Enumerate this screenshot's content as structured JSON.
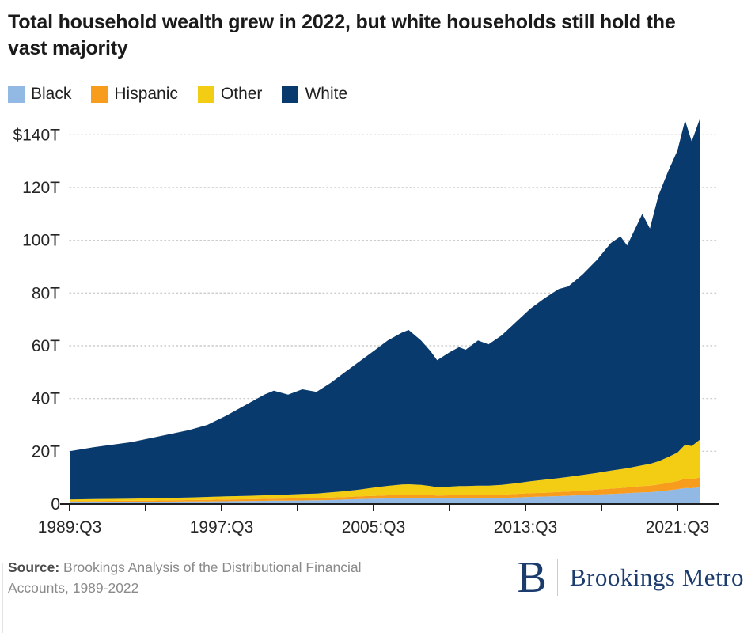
{
  "page": {
    "title": "Total household wealth grew in 2022, but white households still hold the vast majority"
  },
  "legend": {
    "items": [
      {
        "label": "Black",
        "color": "#92b9e4"
      },
      {
        "label": "Hispanic",
        "color": "#f89c1d"
      },
      {
        "label": "Other",
        "color": "#f2cd13"
      },
      {
        "label": "White",
        "color": "#093a6d"
      }
    ]
  },
  "chart_data": {
    "type": "area",
    "stacked": true,
    "title": "Total household wealth grew in 2022, but white households still hold the vast majority",
    "unit": "trillions of US dollars",
    "ylabel": "",
    "xlabel": "",
    "grid": "horizontal-dotted",
    "legend_position": "top",
    "y_max": 150,
    "y_ticks": [
      {
        "value": 0,
        "label": "0"
      },
      {
        "value": 20,
        "label": "20T"
      },
      {
        "value": 40,
        "label": "40T"
      },
      {
        "value": 60,
        "label": "60T"
      },
      {
        "value": 80,
        "label": "80T"
      },
      {
        "value": 100,
        "label": "100T"
      },
      {
        "value": 120,
        "label": "120T"
      },
      {
        "value": 140,
        "label": "$140T"
      }
    ],
    "x_ticks": [
      {
        "year": 1989.75,
        "label": "1989:Q3"
      },
      {
        "year": 1993.75,
        "label": ""
      },
      {
        "year": 1997.75,
        "label": "1997:Q3"
      },
      {
        "year": 2001.75,
        "label": ""
      },
      {
        "year": 2005.75,
        "label": "2005:Q3"
      },
      {
        "year": 2009.75,
        "label": ""
      },
      {
        "year": 2013.75,
        "label": "2013:Q3"
      },
      {
        "year": 2017.75,
        "label": ""
      },
      {
        "year": 2021.75,
        "label": "2021:Q3"
      }
    ],
    "x": [
      1989.75,
      1991,
      1992,
      1993,
      1994,
      1995,
      1996,
      1997,
      1998,
      1999,
      2000,
      2000.5,
      2001.25,
      2002,
      2002.75,
      2003.5,
      2004.25,
      2005,
      2005.75,
      2006.5,
      2007.25,
      2007.6,
      2008.25,
      2008.75,
      2009.1,
      2009.75,
      2010.25,
      2010.6,
      2011.25,
      2011.8,
      2012.5,
      2013.25,
      2014,
      2014.75,
      2015.5,
      2016,
      2016.75,
      2017.5,
      2018.25,
      2018.75,
      2019.1,
      2019.9,
      2020.3,
      2020.75,
      2021.25,
      2021.75,
      2022.15,
      2022.5,
      2022.95
    ],
    "series": [
      {
        "name": "Black",
        "color": "#92b9e4",
        "values": [
          0.7,
          0.75,
          0.8,
          0.8,
          0.85,
          0.9,
          0.95,
          1.0,
          1.05,
          1.1,
          1.2,
          1.25,
          1.3,
          1.35,
          1.4,
          1.5,
          1.7,
          1.9,
          2.0,
          2.1,
          2.2,
          2.25,
          2.3,
          2.2,
          2.1,
          2.15,
          2.2,
          2.2,
          2.25,
          2.25,
          2.3,
          2.5,
          2.7,
          2.85,
          3.0,
          3.15,
          3.35,
          3.6,
          3.85,
          4.0,
          4.1,
          4.4,
          4.5,
          4.8,
          5.2,
          5.6,
          6.1,
          6.0,
          6.4
        ]
      },
      {
        "name": "Hispanic",
        "color": "#f89c1d",
        "values": [
          0.4,
          0.4,
          0.4,
          0.45,
          0.45,
          0.5,
          0.55,
          0.6,
          0.65,
          0.7,
          0.75,
          0.75,
          0.8,
          0.85,
          0.9,
          0.95,
          0.95,
          1.0,
          1.1,
          1.2,
          1.2,
          1.2,
          1.2,
          1.2,
          1.1,
          1.15,
          1.2,
          1.2,
          1.2,
          1.2,
          1.25,
          1.3,
          1.4,
          1.45,
          1.55,
          1.6,
          1.7,
          1.85,
          2.0,
          2.1,
          2.2,
          2.4,
          2.5,
          2.6,
          2.8,
          3.1,
          3.5,
          3.4,
          3.7
        ]
      },
      {
        "name": "Other",
        "color": "#f2cd13",
        "values": [
          0.6,
          0.7,
          0.75,
          0.8,
          0.85,
          0.9,
          1.0,
          1.1,
          1.2,
          1.3,
          1.35,
          1.45,
          1.5,
          1.6,
          1.7,
          1.95,
          2.25,
          2.6,
          3.1,
          3.6,
          4.0,
          4.05,
          3.8,
          3.4,
          3.2,
          3.3,
          3.4,
          3.4,
          3.55,
          3.55,
          3.75,
          4.1,
          4.5,
          4.9,
          5.25,
          5.55,
          5.95,
          6.35,
          6.85,
          7.1,
          7.3,
          7.9,
          8.2,
          8.8,
          9.8,
          10.8,
          12.9,
          12.6,
          14.4
        ]
      },
      {
        "name": "White",
        "color": "#093a6d",
        "values": [
          18.3,
          19.65,
          20.55,
          21.45,
          22.85,
          24.2,
          25.5,
          27.3,
          30.6,
          34.4,
          38.2,
          39.55,
          37.9,
          39.7,
          38.5,
          41.6,
          45.1,
          48.5,
          51.8,
          55.1,
          57.6,
          58.5,
          54.7,
          51.2,
          48.1,
          50.9,
          52.7,
          51.7,
          55.0,
          53.5,
          56.7,
          61.1,
          65.4,
          68.8,
          71.7,
          72.2,
          76.0,
          80.7,
          86.3,
          88.3,
          84.4,
          95.3,
          89.3,
          100.8,
          108.2,
          114.5,
          123.0,
          115.5,
          122.0
        ]
      }
    ]
  },
  "footer": {
    "source_label": "Source:",
    "source_text": " Brookings Analysis of the Distributional Financial Accounts, 1989-2022",
    "logo_letter": "B",
    "logo_text": "Brookings Metro"
  }
}
